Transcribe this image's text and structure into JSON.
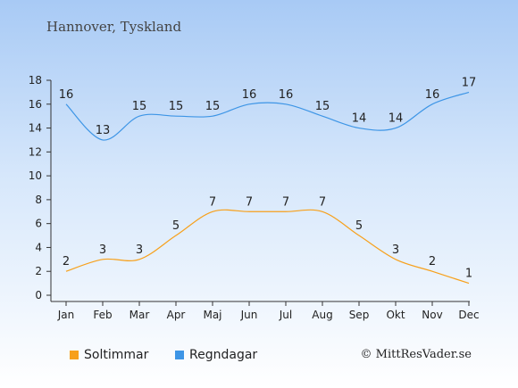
{
  "chart_data": {
    "type": "line",
    "title": "Hannover, Tyskland",
    "categories": [
      "Jan",
      "Feb",
      "Mar",
      "Apr",
      "Maj",
      "Jun",
      "Jul",
      "Aug",
      "Sep",
      "Okt",
      "Nov",
      "Dec"
    ],
    "series": [
      {
        "name": "Soltimmar",
        "color": "#f7a01a",
        "values": [
          2,
          3,
          3,
          5,
          7,
          7,
          7,
          7,
          5,
          3,
          2,
          1
        ]
      },
      {
        "name": "Regndagar",
        "color": "#3d95e6",
        "values": [
          16,
          13,
          15,
          15,
          15,
          16,
          16,
          15,
          14,
          14,
          16,
          17
        ]
      }
    ],
    "ylim": [
      0,
      18
    ],
    "yticks": [
      0,
      2,
      4,
      6,
      8,
      10,
      12,
      14,
      16,
      18
    ],
    "grid": false,
    "legend_position": "bottom-left"
  },
  "credit": "© MittResVader.se"
}
